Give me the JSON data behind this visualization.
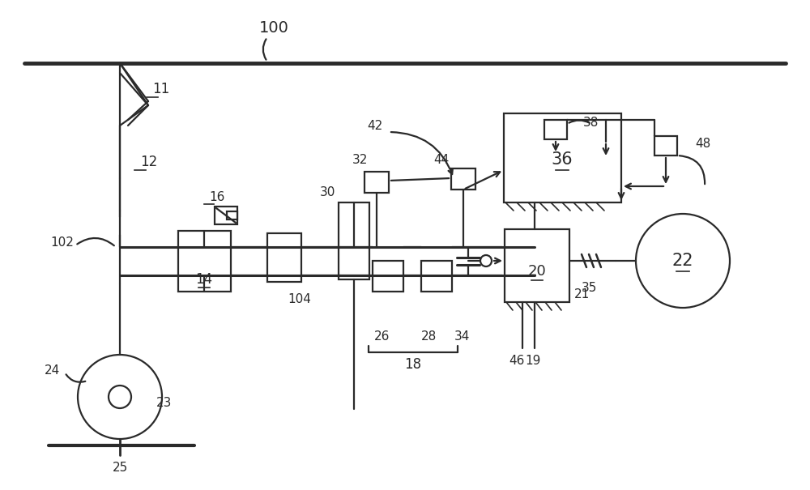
{
  "bg_color": "#ffffff",
  "line_color": "#2a2a2a",
  "fig_width": 10.0,
  "fig_height": 6.05,
  "dpi": 100
}
